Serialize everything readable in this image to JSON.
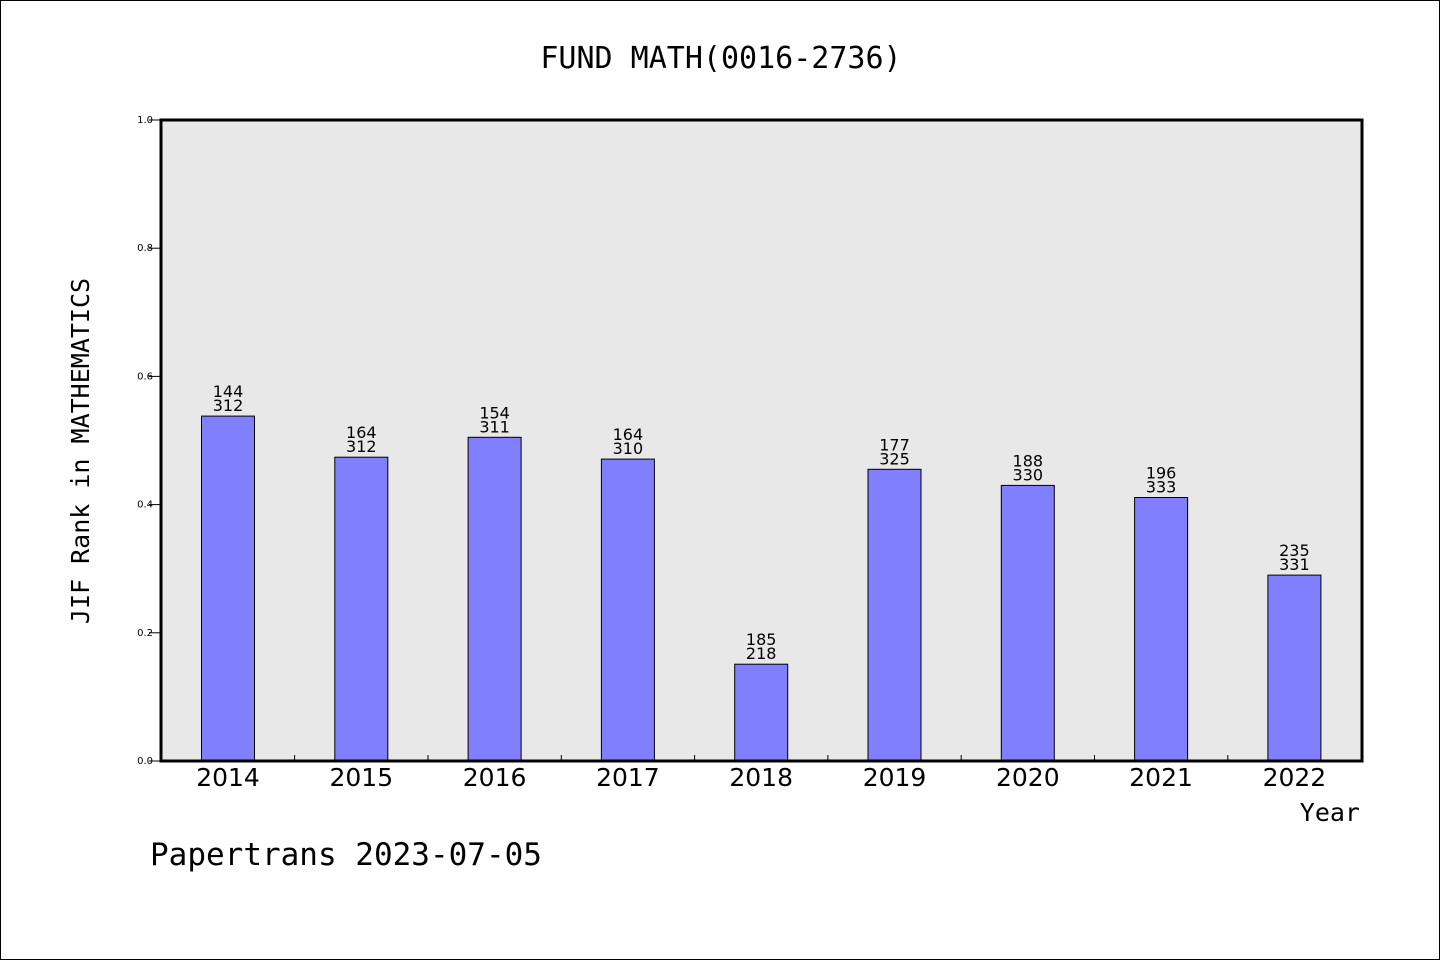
{
  "chart_data": {
    "type": "bar",
    "title": "FUND MATH(0016-2736)",
    "ylabel": "JIF Rank in MATHEMATICS",
    "xlabel": "Year",
    "categories": [
      "2014",
      "2015",
      "2016",
      "2017",
      "2018",
      "2019",
      "2020",
      "2021",
      "2022"
    ],
    "values": [
      0.538,
      0.474,
      0.505,
      0.471,
      0.151,
      0.455,
      0.43,
      0.411,
      0.29
    ],
    "label_top": [
      "144",
      "164",
      "154",
      "164",
      "185",
      "177",
      "188",
      "196",
      "235"
    ],
    "label_bottom": [
      "312",
      "312",
      "311",
      "310",
      "218",
      "325",
      "330",
      "333",
      "331"
    ],
    "ylim": [
      0.0,
      1.0
    ],
    "yticks": [
      "0.0",
      "0.2",
      "0.4",
      "0.6",
      "0.8",
      "1.0"
    ],
    "grid": false,
    "colors": {
      "bar": "#8080ff",
      "plot_background": "#e8e8e8"
    }
  },
  "footer": {
    "text": "Papertrans 2023-07-05"
  }
}
